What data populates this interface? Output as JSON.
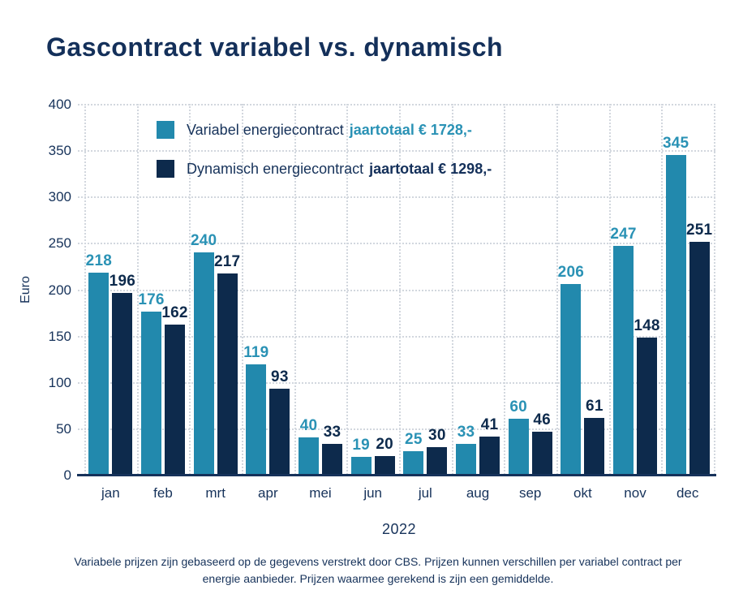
{
  "title": "Gascontract variabel vs. dynamisch",
  "legend": {
    "items": [
      {
        "label": "Variabel energiecontract",
        "total": "jaartotaal € 1728,-",
        "swatch_color": "#2289ad",
        "total_color": "#2a92b5"
      },
      {
        "label": "Dynamisch energiecontract",
        "total": "jaartotaal € 1298,-",
        "swatch_color": "#0d2a4c",
        "total_color": "#14305a"
      }
    ]
  },
  "chart_data": {
    "type": "bar",
    "categories": [
      "jan",
      "feb",
      "mrt",
      "apr",
      "mei",
      "jun",
      "jul",
      "aug",
      "sep",
      "okt",
      "nov",
      "dec"
    ],
    "series": [
      {
        "name": "Variabel energiecontract",
        "color": "#2289ad",
        "label_color": "#2a92b5",
        "values": [
          218,
          176,
          240,
          119,
          40,
          19,
          25,
          33,
          60,
          206,
          247,
          345
        ]
      },
      {
        "name": "Dynamisch energiecontract",
        "color": "#0d2a4c",
        "label_color": "#0d2a4c",
        "values": [
          196,
          162,
          217,
          93,
          33,
          20,
          30,
          41,
          46,
          61,
          148,
          251
        ]
      }
    ],
    "title": "Gascontract variabel vs. dynamisch",
    "xlabel": "2022",
    "ylabel": "Euro",
    "ylim": [
      0,
      400
    ],
    "yticks": [
      0,
      50,
      100,
      150,
      200,
      250,
      300,
      350,
      400
    ],
    "grid": true,
    "legend_position": "top-left-inside",
    "value_labels": true
  },
  "footer": {
    "lines": [
      "Variabele prijzen zijn gebaseerd op de gegevens verstrekt door CBS. Prijzen kunnen verschillen per variabel contract per",
      "energie aanbieder. Prijzen waarmee gerekend is zijn een gemiddelde."
    ]
  }
}
